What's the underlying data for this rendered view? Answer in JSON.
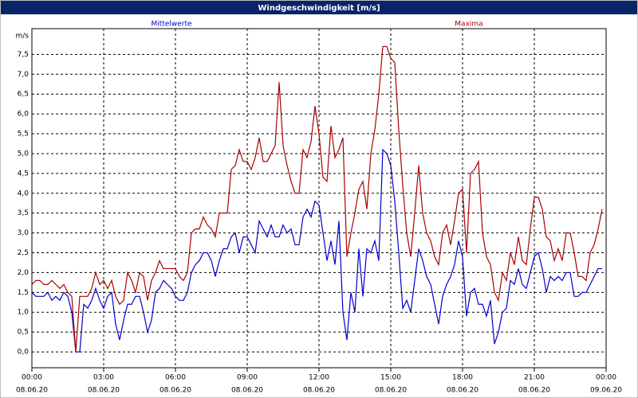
{
  "chart_data": {
    "type": "line",
    "title": "Windgeschwindigkeit [m/s]",
    "ylabel": "m/s",
    "xlim": [
      0,
      1440
    ],
    "ylim": [
      -0.4,
      8.15
    ],
    "grid": true,
    "xticks": [
      {
        "value": 0,
        "label": "00:00",
        "sublabel": "08.06.20"
      },
      {
        "value": 180,
        "label": "03:00",
        "sublabel": "08.06.20"
      },
      {
        "value": 360,
        "label": "06:00",
        "sublabel": "08.06.20"
      },
      {
        "value": 540,
        "label": "09:00",
        "sublabel": "08.06.20"
      },
      {
        "value": 720,
        "label": "12:00",
        "sublabel": "08.06.20"
      },
      {
        "value": 900,
        "label": "15:00",
        "sublabel": "08.06.20"
      },
      {
        "value": 1080,
        "label": "18:00",
        "sublabel": "08.06.20"
      },
      {
        "value": 1260,
        "label": "21:00",
        "sublabel": "08.06.20"
      },
      {
        "value": 1440,
        "label": "00:00",
        "sublabel": "09.06.20"
      }
    ],
    "yticks": [
      {
        "value": 0,
        "label": "0,0"
      },
      {
        "value": 0.5,
        "label": "0,5"
      },
      {
        "value": 1,
        "label": "1,0"
      },
      {
        "value": 1.5,
        "label": "1,5"
      },
      {
        "value": 2,
        "label": "2,0"
      },
      {
        "value": 2.5,
        "label": "2,5"
      },
      {
        "value": 3,
        "label": "3,0"
      },
      {
        "value": 3.5,
        "label": "3,5"
      },
      {
        "value": 4,
        "label": "4,0"
      },
      {
        "value": 4.5,
        "label": "4,5"
      },
      {
        "value": 5,
        "label": "5,0"
      },
      {
        "value": 5.5,
        "label": "5,5"
      },
      {
        "value": 6,
        "label": "6,0"
      },
      {
        "value": 6.5,
        "label": "6,5"
      },
      {
        "value": 7,
        "label": "7,0"
      },
      {
        "value": 7.5,
        "label": "7,5"
      }
    ],
    "x": [
      0,
      10,
      20,
      30,
      40,
      50,
      60,
      70,
      80,
      90,
      100,
      110,
      120,
      130,
      140,
      150,
      160,
      170,
      180,
      190,
      200,
      210,
      220,
      230,
      240,
      250,
      260,
      270,
      280,
      290,
      300,
      310,
      320,
      330,
      340,
      350,
      360,
      370,
      380,
      390,
      400,
      410,
      420,
      430,
      440,
      450,
      460,
      470,
      480,
      490,
      500,
      510,
      520,
      530,
      540,
      550,
      560,
      570,
      580,
      590,
      600,
      610,
      620,
      630,
      640,
      650,
      660,
      670,
      680,
      690,
      700,
      710,
      720,
      730,
      740,
      750,
      760,
      770,
      780,
      790,
      800,
      810,
      820,
      830,
      840,
      850,
      860,
      870,
      880,
      890,
      900,
      910,
      920,
      930,
      940,
      950,
      960,
      970,
      980,
      990,
      1000,
      1010,
      1020,
      1030,
      1040,
      1050,
      1060,
      1070,
      1080,
      1090,
      1100,
      1110,
      1120,
      1130,
      1140,
      1150,
      1160,
      1170,
      1180,
      1190,
      1200,
      1210,
      1220,
      1230,
      1240,
      1250,
      1260,
      1270,
      1280,
      1290,
      1300,
      1310,
      1320,
      1330,
      1340,
      1350,
      1360,
      1370,
      1380,
      1390,
      1400,
      1410,
      1420,
      1430
    ],
    "series": [
      {
        "name": "Mittelwerte",
        "color": "#0000cc",
        "values": [
          1.5,
          1.4,
          1.4,
          1.4,
          1.5,
          1.3,
          1.4,
          1.3,
          1.5,
          1.4,
          1.0,
          0.0,
          0.0,
          1.2,
          1.1,
          1.3,
          1.6,
          1.3,
          1.1,
          1.4,
          1.5,
          0.7,
          0.3,
          0.8,
          1.2,
          1.2,
          1.4,
          1.4,
          1.0,
          0.5,
          0.8,
          1.5,
          1.6,
          1.8,
          1.7,
          1.6,
          1.4,
          1.3,
          1.3,
          1.5,
          2.0,
          2.2,
          2.3,
          2.5,
          2.5,
          2.3,
          1.9,
          2.3,
          2.6,
          2.6,
          2.9,
          3.0,
          2.5,
          2.9,
          2.9,
          2.7,
          2.5,
          3.3,
          3.1,
          2.9,
          3.2,
          2.9,
          2.9,
          3.2,
          3.0,
          3.1,
          2.7,
          2.7,
          3.4,
          3.6,
          3.4,
          3.8,
          3.7,
          3.0,
          2.3,
          2.8,
          2.2,
          3.3,
          1.0,
          0.3,
          1.5,
          1.0,
          2.6,
          1.4,
          2.6,
          2.5,
          2.8,
          2.3,
          5.1,
          5.0,
          4.7,
          3.8,
          2.5,
          1.1,
          1.3,
          1.0,
          1.8,
          2.6,
          2.3,
          1.9,
          1.7,
          1.2,
          0.7,
          1.4,
          1.7,
          1.9,
          2.2,
          2.8,
          2.4,
          0.9,
          1.5,
          1.6,
          1.2,
          1.2,
          0.9,
          1.3,
          0.2,
          0.5,
          1.0,
          1.1,
          1.8,
          1.7,
          2.1,
          1.7,
          1.6,
          2.0,
          2.4,
          2.5,
          2.1,
          1.5,
          1.9,
          1.8,
          1.9,
          1.8,
          2.0,
          2.0,
          1.4,
          1.4,
          1.5,
          1.5,
          1.7,
          1.9,
          2.1,
          2.1
        ]
      },
      {
        "name": "Maxima",
        "color": "#aa0000",
        "values": [
          1.7,
          1.8,
          1.8,
          1.7,
          1.7,
          1.8,
          1.7,
          1.6,
          1.7,
          1.5,
          1.4,
          0.0,
          1.4,
          1.4,
          1.4,
          1.6,
          2.0,
          1.7,
          1.8,
          1.6,
          1.8,
          1.4,
          1.2,
          1.3,
          2.0,
          1.8,
          1.5,
          2.0,
          1.9,
          1.3,
          1.8,
          2.0,
          2.3,
          2.1,
          2.1,
          2.1,
          2.1,
          1.9,
          1.8,
          2.0,
          3.0,
          3.1,
          3.1,
          3.4,
          3.2,
          3.1,
          2.9,
          3.5,
          3.5,
          3.5,
          4.6,
          4.7,
          5.1,
          4.8,
          4.8,
          4.6,
          4.9,
          5.4,
          4.8,
          4.8,
          5.0,
          5.2,
          6.8,
          5.2,
          4.7,
          4.3,
          4.0,
          4.0,
          5.1,
          4.9,
          5.3,
          6.2,
          5.5,
          4.4,
          4.3,
          5.7,
          4.9,
          5.1,
          5.4,
          2.4,
          3.0,
          3.5,
          4.1,
          4.3,
          3.6,
          5.0,
          5.6,
          6.5,
          7.7,
          7.7,
          7.4,
          7.3,
          5.6,
          4.2,
          3.0,
          2.4,
          3.5,
          4.7,
          3.5,
          3.0,
          2.8,
          2.4,
          2.2,
          3.0,
          3.2,
          2.7,
          3.3,
          4.0,
          4.1,
          2.5,
          4.5,
          4.6,
          4.8,
          3.0,
          2.4,
          2.2,
          1.5,
          1.3,
          2.0,
          1.8,
          2.5,
          2.2,
          2.9,
          2.3,
          2.2,
          3.1,
          3.9,
          3.9,
          3.6,
          2.9,
          2.8,
          2.3,
          2.6,
          2.3,
          3.0,
          3.0,
          2.5,
          1.9,
          1.9,
          1.8,
          2.5,
          2.7,
          3.1,
          3.6
        ]
      }
    ]
  }
}
